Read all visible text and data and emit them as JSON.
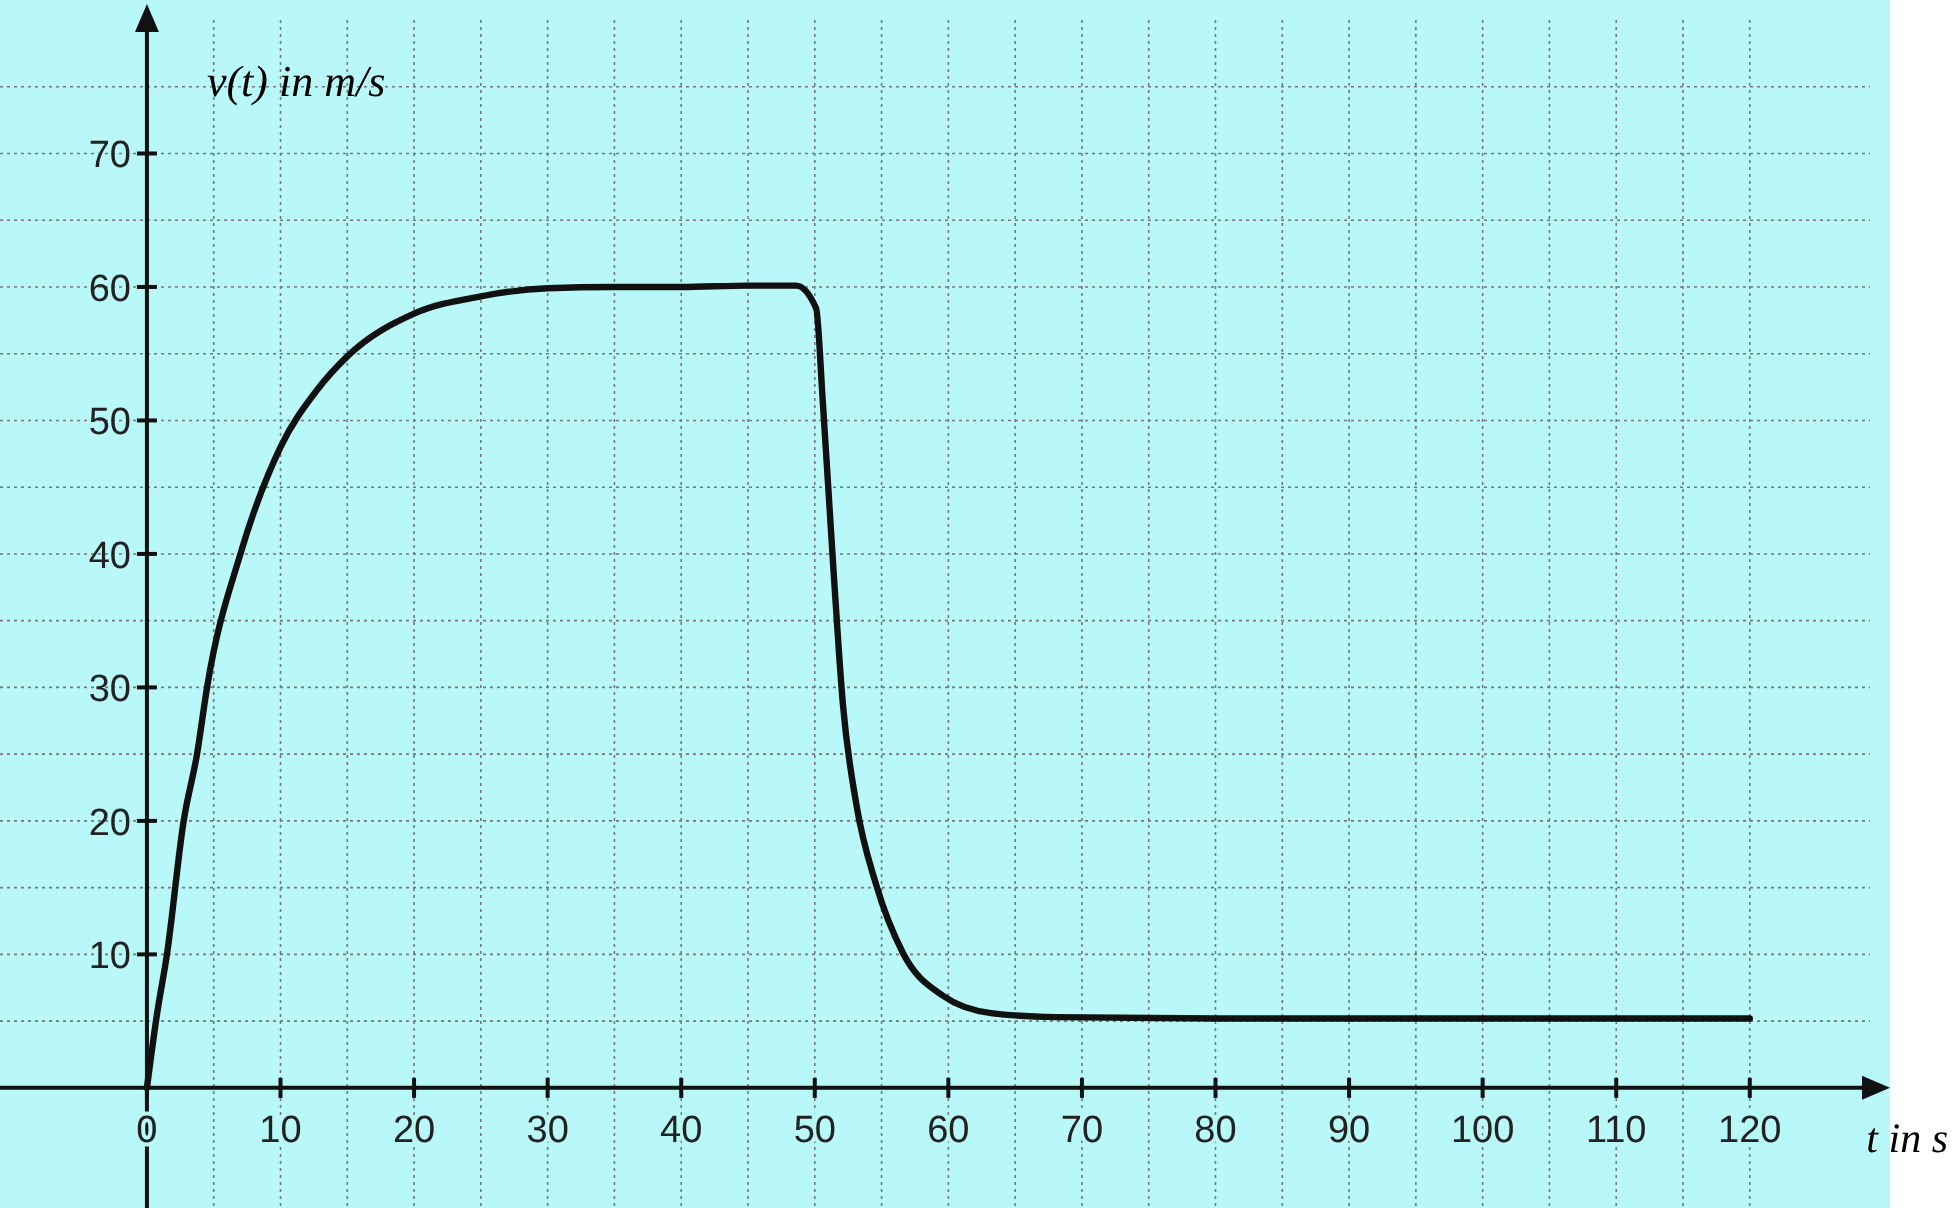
{
  "chart_data": {
    "type": "line",
    "xlabel": "t in s",
    "ylabel": "v(t) in m/s",
    "xlim": [
      -11,
      129
    ],
    "ylim": [
      -9,
      80
    ],
    "xticks": [
      0,
      {
        "value": 5,
        "label": null
      },
      10,
      {
        "value": 15,
        "label": null
      },
      20,
      {
        "value": 25,
        "label": null
      },
      30,
      {
        "value": 35,
        "label": null
      },
      40,
      {
        "value": 45,
        "label": null
      },
      50,
      {
        "value": 55,
        "label": null
      },
      60,
      {
        "value": 65,
        "label": null
      },
      70,
      {
        "value": 75,
        "label": null
      },
      80,
      {
        "value": 85,
        "label": null
      },
      90,
      {
        "value": 95,
        "label": null
      },
      100,
      {
        "value": 105,
        "label": null
      },
      110,
      {
        "value": 115,
        "label": null
      },
      120
    ],
    "yticks": [
      {
        "value": 5,
        "label": null
      },
      10,
      {
        "value": 15,
        "label": null
      },
      20,
      {
        "value": 25,
        "label": null
      },
      30,
      {
        "value": 35,
        "label": null
      },
      40,
      {
        "value": 45,
        "label": null
      },
      50,
      {
        "value": 55,
        "label": null
      },
      60,
      {
        "value": 65,
        "label": null
      },
      70,
      {
        "value": 75,
        "label": null
      }
    ],
    "grid": true,
    "marker": "none",
    "line_style": "solid",
    "series": [
      {
        "color": "#111111",
        "x": [
          0,
          0.75,
          1.5,
          2.75,
          3.75,
          4.5,
          7,
          10,
          12.75,
          15,
          20,
          25,
          30,
          35,
          40,
          45,
          48.6,
          50.1,
          50.6,
          51.4,
          52.1,
          53.1,
          54.6,
          56.6,
          59.6,
          63.2,
          68,
          80,
          100,
          120
        ],
        "values": [
          0,
          5.5,
          10,
          20,
          25,
          30,
          40,
          48,
          52.3,
          54.8,
          58,
          59.3,
          59.9,
          60,
          60,
          60.1,
          60.1,
          58.4,
          51.4,
          38.8,
          28.8,
          21.3,
          15.2,
          10.1,
          6.9,
          5.6,
          5.3,
          5.2,
          5.2,
          5.2
        ]
      }
    ]
  }
}
